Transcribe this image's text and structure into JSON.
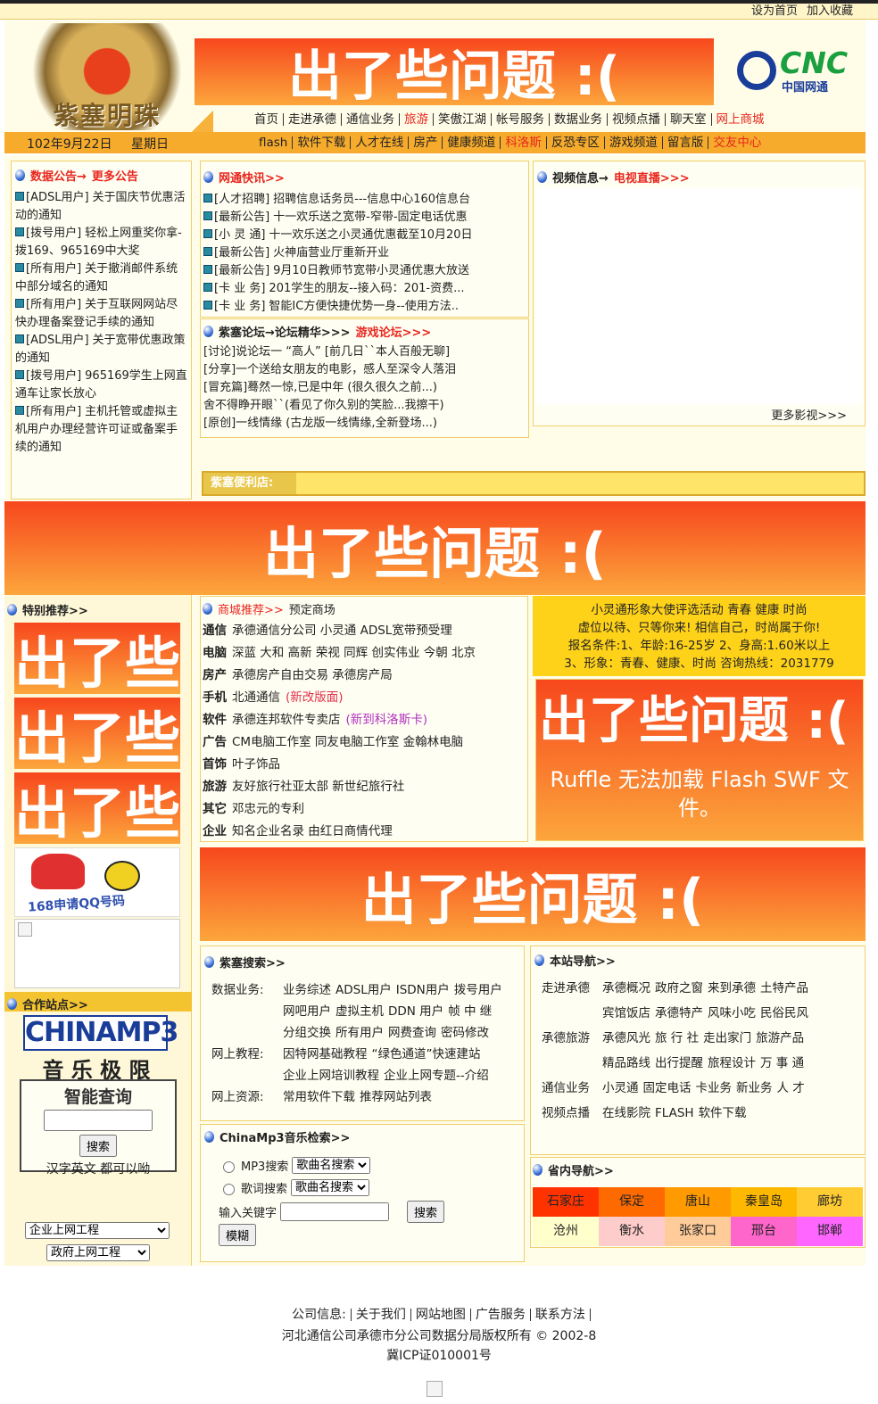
{
  "top_links": [
    "设为首页",
    "加入收藏"
  ],
  "logo_text": "紫塞明珠",
  "flash_error": "出了些问题 :(",
  "ruffle_message": "Ruffle 无法加载 Flash SWF 文件。",
  "cnc_logo": {
    "name": "CNC",
    "subtitle": "中国网通"
  },
  "nav_main": [
    {
      "label": "首页"
    },
    {
      "label": "走进承德"
    },
    {
      "label": "通信业务"
    },
    {
      "label": "旅游",
      "red": true
    },
    {
      "label": "笑傲江湖"
    },
    {
      "label": "帐号服务"
    },
    {
      "label": "数据业务"
    },
    {
      "label": "视频点播"
    },
    {
      "label": "聊天室"
    },
    {
      "label": "网上商城",
      "red": true
    }
  ],
  "date": "102年9月22日",
  "weekday": "星期日",
  "nav_sub": [
    {
      "label": "flash"
    },
    {
      "label": "软件下载"
    },
    {
      "label": "人才在线"
    },
    {
      "label": "房产"
    },
    {
      "label": "健康频道"
    },
    {
      "label": "科洛斯",
      "red": true
    },
    {
      "label": "反恐专区"
    },
    {
      "label": "游戏频道"
    },
    {
      "label": "留言版"
    },
    {
      "label": "交友中心",
      "red": true
    }
  ],
  "announcements": {
    "title": "数据公告→",
    "more": "更多公告",
    "items": [
      {
        "tag": "[ADSL用户]",
        "text": "关于国庆节优惠活动的通知"
      },
      {
        "tag": "[拨号用户]",
        "text": "轻松上网重奖你拿-拨169、965169中大奖"
      },
      {
        "tag": "[所有用户]",
        "text": "关于撤消邮件系统中部分域名的通知"
      },
      {
        "tag": "[所有用户]",
        "text": "关于互联网网站尽快办理备案登记手续的通知"
      },
      {
        "tag": "[ADSL用户]",
        "text": "关于宽带优惠政策的通知"
      },
      {
        "tag": "[拨号用户]",
        "text": "965169学生上网直通车让家长放心"
      },
      {
        "tag": "[所有用户]",
        "text": "主机托管或虚拟主机用户办理经营许可证或备案手续的通知"
      }
    ]
  },
  "news": {
    "title": "网通快讯>>",
    "items": [
      {
        "tag": "[人才招聘]",
        "text": "招聘信息话务员---信息中心160信息台"
      },
      {
        "tag": "[最新公告]",
        "text": "十一欢乐送之宽带-窄带-固定电话优惠"
      },
      {
        "tag": "[小 灵 通]",
        "text": "十一欢乐送之小灵通优惠截至10月20日"
      },
      {
        "tag": "[最新公告]",
        "text": "火神庙营业厅重新开业"
      },
      {
        "tag": "[最新公告]",
        "text": "9月10日教师节宽带小灵通优惠大放送"
      },
      {
        "tag": "[卡 业 务]",
        "text": "201学生的朋友--接入码：201-资费..."
      },
      {
        "tag": "[卡 业 务]",
        "text": "智能IC方便快捷优势一身--使用方法.."
      }
    ]
  },
  "forum": {
    "title": "紫塞论坛→论坛精华>>>",
    "game": "游戏论坛>>>",
    "items": [
      "[讨论]说论坛一 “高人” [前几日``本人百般无聊]",
      "[分享]一个送给女朋友的电影，感人至深令人落泪",
      "[冒充篇]蓦然一惊,已是中年 (很久很久之前...)",
      "舍不得睁开眼``(看见了你久别的笑脸...我擦干)",
      "[原创]一线情缘 (古龙版一线情缘,全新登场...)"
    ]
  },
  "video": {
    "title": "视频信息→",
    "live": "电视直播>>>",
    "more": "更多影视>>>"
  },
  "store_label": "紫塞便利店:",
  "featured_title": "特别推荐>>",
  "qq_image_text": "168申请QQ号码",
  "partners": {
    "title": "合作站点>>",
    "logo": "CHINAMP3",
    "logo_sub": "音 乐 极 限",
    "search_title": "智能查询",
    "button": "搜索",
    "hint": "汉字英文 都可以呦"
  },
  "selects": [
    "企业上网工程",
    "政府上网工程"
  ],
  "shop": {
    "title": "商城推荐>>",
    "subtitle": "预定商场",
    "rows": [
      {
        "cat": "通信",
        "text": "承德通信分公司 小灵通 ADSL宽带预受理"
      },
      {
        "cat": "电脑",
        "text": "深蓝 大和 高新 荣视 同辉 创实伟业 今朝 北京"
      },
      {
        "cat": "房产",
        "text": "承德房产自由交易 承德房产局"
      },
      {
        "cat": "手机",
        "text": "北通通信",
        "note": "(新改版面)",
        "note_color": "#e0304a"
      },
      {
        "cat": "软件",
        "text": "承德连邦软件专卖店",
        "note": "(新到科洛斯卡)",
        "note_color": "#b030c0"
      },
      {
        "cat": "广告",
        "text": "CM电脑工作室 同友电脑工作室 金翰林电脑"
      },
      {
        "cat": "首饰",
        "text": "叶子饰品"
      },
      {
        "cat": "旅游",
        "text": "友好旅行社亚太部 新世纪旅行社"
      },
      {
        "cat": "其它",
        "text": "邓忠元的专利"
      },
      {
        "cat": "企业",
        "text": "知名企业名录 由红日商情代理"
      }
    ]
  },
  "promo": [
    "小灵通形象大使评选活动 青春 健康 时尚",
    "虚位以待、只等你来! 相信自己，时尚属于你!",
    "报名条件:1、年龄:16-25岁 2、身高:1.60米以上",
    "3、形象：青春、健康、时尚 咨询热线：2031779"
  ],
  "search": {
    "title": "紫塞搜索>>",
    "rows": [
      {
        "label": "数据业务:",
        "links": [
          "业务综述",
          "ADSL用户",
          "ISDN用户",
          "拨号用户",
          "网吧用户",
          "虚拟主机",
          "DDN 用户",
          "帧 中 继",
          "分组交换",
          "所有用户",
          "网费查询",
          "密码修改"
        ]
      },
      {
        "label": "网上教程:",
        "links": [
          "因特网基础教程",
          "“绿色通道”快速建站",
          "企业上网培训教程",
          "企业上网专题--介绍"
        ]
      },
      {
        "label": "网上资源:",
        "links": [
          "常用软件下载",
          "推荐网站列表"
        ]
      }
    ]
  },
  "mp3": {
    "title": "ChinaMp3音乐检索>>",
    "modes": [
      "MP3搜索",
      "歌词搜索"
    ],
    "option": "歌曲名搜索",
    "keyword": "输入关键字",
    "search": "搜索",
    "fuzzy": "模糊"
  },
  "site_nav": {
    "title": "本站导航>>",
    "rows": [
      {
        "label": "走进承德",
        "links": [
          "承德概况",
          "政府之窗",
          "来到承德",
          "土特产品",
          "宾馆饭店",
          "承德特产",
          "风味小吃",
          "民俗民风"
        ]
      },
      {
        "label": "承德旅游",
        "links": [
          "承德风光",
          "旅 行 社",
          "走出家门",
          "旅游产品",
          "精品路线",
          "出行提醒",
          "旅程设计",
          "万 事 通"
        ]
      },
      {
        "label": "通信业务",
        "links": [
          "小灵通",
          "固定电话",
          "卡业务",
          "新业务",
          "人 才"
        ]
      },
      {
        "label": "视频点播",
        "links": [
          "在线影院",
          "FLASH",
          "软件下载"
        ]
      }
    ]
  },
  "province_nav": {
    "title": "省内导航>>",
    "cities": [
      {
        "name": "石家庄",
        "color": "#ff3300"
      },
      {
        "name": "保定",
        "color": "#ff6a00"
      },
      {
        "name": "唐山",
        "color": "#ff9a00"
      },
      {
        "name": "秦皇岛",
        "color": "#ffb800"
      },
      {
        "name": "廊坊",
        "color": "#ffcc33"
      },
      {
        "name": "沧州",
        "color": "#ffffcc"
      },
      {
        "name": "衡水",
        "color": "#ffcccc"
      },
      {
        "name": "张家口",
        "color": "#ffcc99"
      },
      {
        "name": "邢台",
        "color": "#ff66cc"
      },
      {
        "name": "邯郸",
        "color": "#ff66ff"
      }
    ]
  },
  "footer": {
    "label": "公司信息:",
    "links": [
      "关于我们",
      "网站地图",
      "广告服务",
      "联系方法"
    ],
    "copyright": "河北通信公司承德市分公司数据分局版权所有 © 2002-8",
    "icp": "冀ICP证010001号"
  }
}
